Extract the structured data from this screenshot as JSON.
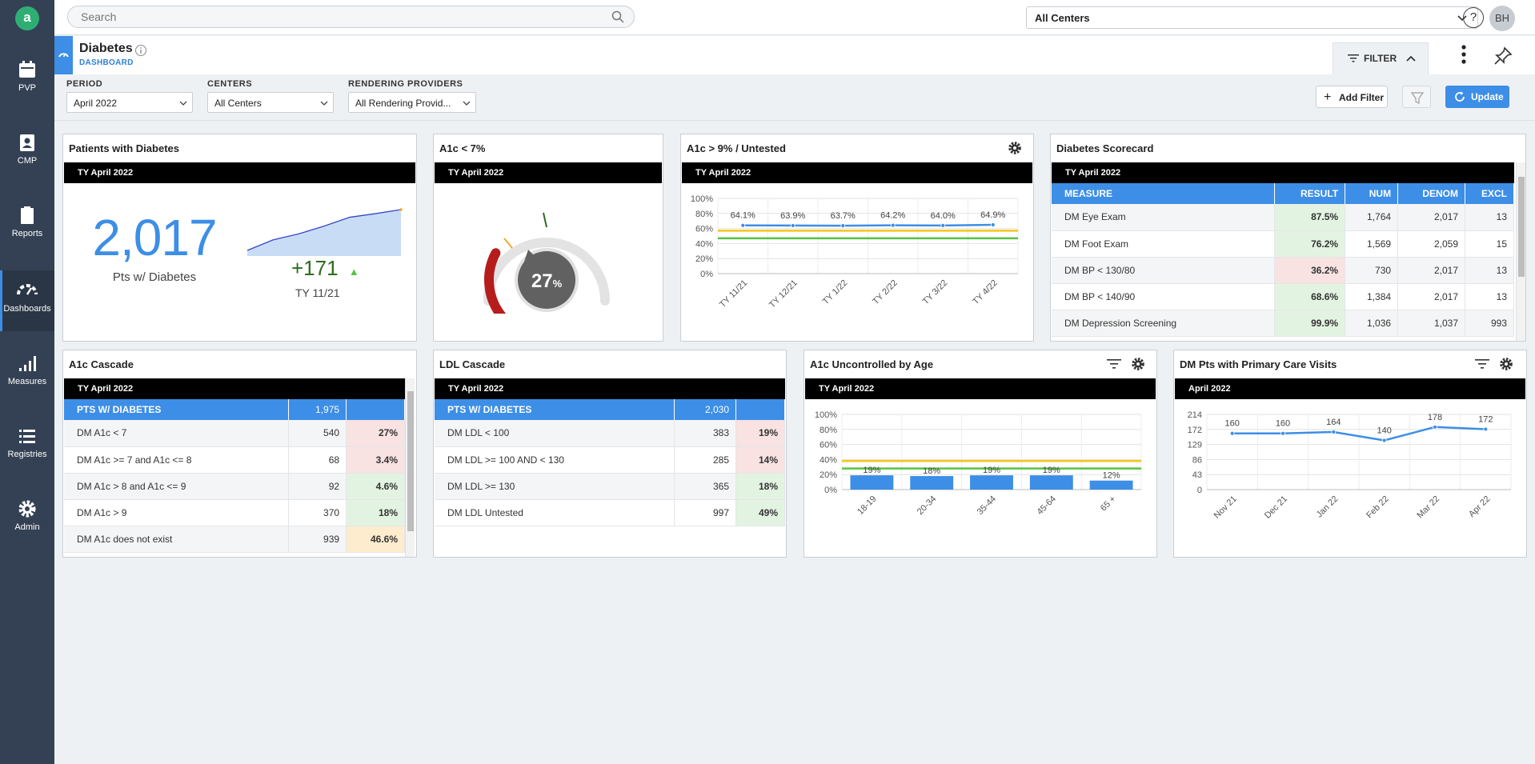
{
  "sidebar": {
    "logo": "a",
    "items": [
      {
        "label": "PVP",
        "icon": "calendar-icon"
      },
      {
        "label": "CMP",
        "icon": "clipboard-person-icon"
      },
      {
        "label": "Reports",
        "icon": "report-icon"
      },
      {
        "label": "Dashboards",
        "icon": "dashboard-gauge-icon"
      },
      {
        "label": "Measures",
        "icon": "bar-signal-icon"
      },
      {
        "label": "Registries",
        "icon": "list-icon"
      },
      {
        "label": "Admin",
        "icon": "gear-icon"
      }
    ]
  },
  "topbar": {
    "search_placeholder": "Search",
    "center_select": "All Centers",
    "help": "?",
    "avatar": "BH"
  },
  "page": {
    "title": "Diabetes",
    "subtitle": "DASHBOARD",
    "filter_label": "FILTER"
  },
  "filters": {
    "period_label": "PERIOD",
    "period_value": "April 2022",
    "centers_label": "CENTERS",
    "centers_value": "All Centers",
    "providers_label": "RENDERING PROVIDERS",
    "providers_value": "All Rendering Provid...",
    "add_filter": "Add Filter",
    "update": "Update"
  },
  "colors": {
    "sidebar": "#344154",
    "accent": "#3d8ee6",
    "good": "#2e6b1d",
    "bad": "#b71c1c",
    "warn": "#d07a0a"
  },
  "patients": {
    "title": "Patients with Diabetes",
    "period": "TY April 2022",
    "count": "2,017",
    "count_label": "Pts w/ Diabetes",
    "delta": "+171",
    "delta_label": "TY 11/21",
    "trend": [
      1846,
      1890,
      1915,
      1948,
      1985,
      2000,
      2017
    ]
  },
  "a1c_lt7": {
    "title": "A1c < 7%",
    "period": "TY April 2022",
    "value": "27",
    "value_pct": 27,
    "unit": "%"
  },
  "a1c_gt9": {
    "title": "A1c > 9% / Untested",
    "period": "TY April 2022"
  },
  "scorecard": {
    "title": "Diabetes Scorecard",
    "period": "TY April 2022",
    "headers": {
      "measure": "MEASURE",
      "result": "RESULT",
      "num": "NUM",
      "denom": "DENOM",
      "excl": "EXCL"
    },
    "rows": [
      {
        "measure": "DM Eye Exam",
        "result": "87.5%",
        "num": "1,764",
        "denom": "2,017",
        "excl": "13"
      },
      {
        "measure": "DM Foot Exam",
        "result": "76.2%",
        "num": "1,569",
        "denom": "2,059",
        "excl": "15"
      },
      {
        "measure": "DM BP < 130/80",
        "result": "36.2%",
        "num": "730",
        "denom": "2,017",
        "excl": "13"
      },
      {
        "measure": "DM BP < 140/90",
        "result": "68.6%",
        "num": "1,384",
        "denom": "2,017",
        "excl": "13"
      },
      {
        "measure": "DM Depression Screening",
        "result": "99.9%",
        "num": "1,036",
        "denom": "1,037",
        "excl": "993"
      }
    ]
  },
  "a1c_cascade": {
    "title": "A1c Cascade",
    "period": "TY April 2022",
    "header": {
      "label": "PTS W/ DIABETES",
      "value": "1,975"
    },
    "rows": [
      {
        "label": "DM A1c < 7",
        "value": "540",
        "pct": "27%"
      },
      {
        "label": "DM A1c >= 7 and A1c <= 8",
        "value": "68",
        "pct": "3.4%"
      },
      {
        "label": "DM A1c > 8 and A1c <= 9",
        "value": "92",
        "pct": "4.6%"
      },
      {
        "label": "DM A1c > 9",
        "value": "370",
        "pct": "18%"
      },
      {
        "label": "DM A1c does not exist",
        "value": "939",
        "pct": "46.6%"
      }
    ]
  },
  "ldl_cascade": {
    "title": "LDL Cascade",
    "period": "TY April 2022",
    "header": {
      "label": "PTS W/ DIABETES",
      "value": "2,030"
    },
    "rows": [
      {
        "label": "DM LDL < 100",
        "value": "383",
        "pct": "19%"
      },
      {
        "label": "DM LDL >= 100 AND < 130",
        "value": "285",
        "pct": "14%"
      },
      {
        "label": "DM LDL >= 130",
        "value": "365",
        "pct": "18%"
      },
      {
        "label": "DM LDL Untested",
        "value": "997",
        "pct": "49%"
      }
    ]
  },
  "a1c_age": {
    "title": "A1c Uncontrolled by Age",
    "period": "TY April 2022"
  },
  "pcp_visits": {
    "title": "DM Pts with Primary Care Visits",
    "period": "April 2022"
  },
  "chart_data": [
    {
      "id": "a1c_gt9_trend",
      "type": "line",
      "title": "A1c > 9% / Untested",
      "categories": [
        "TY 11/21",
        "TY 12/21",
        "TY 1/22",
        "TY 2/22",
        "TY 3/22",
        "TY 4/22"
      ],
      "values": [
        64.1,
        63.9,
        63.7,
        64.2,
        64.0,
        64.9
      ],
      "labels": [
        "64.1%",
        "63.9%",
        "63.7%",
        "64.2%",
        "64.0%",
        "64.9%"
      ],
      "yticks": [
        "0%",
        "20%",
        "40%",
        "60%",
        "80%",
        "100%"
      ],
      "ylim": [
        0,
        100
      ],
      "reference_lines": [
        {
          "value": 57,
          "color": "#f5c518"
        },
        {
          "value": 47,
          "color": "#57c241"
        }
      ]
    },
    {
      "id": "a1c_by_age",
      "type": "bar",
      "title": "A1c Uncontrolled by Age",
      "categories": [
        "18-19",
        "20-34",
        "35-44",
        "45-64",
        "65 +"
      ],
      "values": [
        19,
        18,
        19,
        19,
        12
      ],
      "labels": [
        "19%",
        "18%",
        "19%",
        "19%",
        "12%"
      ],
      "yticks": [
        "0%",
        "20%",
        "40%",
        "60%",
        "80%",
        "100%"
      ],
      "ylim": [
        0,
        100
      ],
      "reference_lines": [
        {
          "value": 38,
          "color": "#f5c518"
        },
        {
          "value": 28,
          "color": "#57c241"
        }
      ]
    },
    {
      "id": "pcp_visits_trend",
      "type": "line",
      "title": "DM Pts with Primary Care Visits",
      "categories": [
        "Nov 21",
        "Dec 21",
        "Jan 22",
        "Feb 22",
        "Mar 22",
        "Apr 22"
      ],
      "values": [
        160,
        160,
        164,
        140,
        178,
        172
      ],
      "labels": [
        "160",
        "160",
        "164",
        "140",
        "178",
        "172"
      ],
      "yticks": [
        "0",
        "43",
        "86",
        "129",
        "172",
        "214"
      ],
      "ylim": [
        0,
        214
      ]
    }
  ]
}
